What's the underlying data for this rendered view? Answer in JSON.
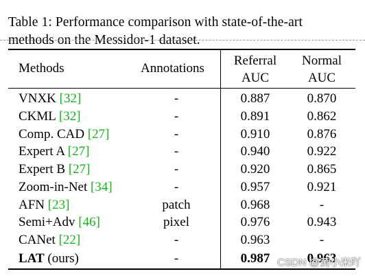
{
  "caption": {
    "line1": "Table 1:  Performance comparison with state-of-the-art",
    "line2": "methods on the Messidor-1 dataset."
  },
  "table": {
    "headers": {
      "methods": "Methods",
      "annotations": "Annotations",
      "referral_l1": "Referral",
      "referral_l2": "AUC",
      "normal_l1": "Normal",
      "normal_l2": "AUC"
    },
    "rows": [
      {
        "name": "VNXK",
        "ref": "[32]",
        "annotations": "-",
        "referral": "0.887",
        "normal": "0.870"
      },
      {
        "name": "CKML",
        "ref": "[32]",
        "annotations": "-",
        "referral": "0.891",
        "normal": "0.862"
      },
      {
        "name": "Comp. CAD",
        "ref": "[27]",
        "annotations": "-",
        "referral": "0.910",
        "normal": "0.876"
      },
      {
        "name": "Expert A",
        "ref": "[27]",
        "annotations": "-",
        "referral": "0.940",
        "normal": "0.922"
      },
      {
        "name": "Expert B",
        "ref": "[27]",
        "annotations": "-",
        "referral": "0.920",
        "normal": "0.865"
      },
      {
        "name": "Zoom-in-Net",
        "ref": "[34]",
        "annotations": "-",
        "referral": "0.957",
        "normal": "0.921"
      },
      {
        "name": "AFN",
        "ref": "[23]",
        "annotations": "patch",
        "referral": "0.968",
        "normal": "-"
      },
      {
        "name": "Semi+Adv",
        "ref": "[46]",
        "annotations": "pixel",
        "referral": "0.976",
        "normal": "0.943"
      },
      {
        "name": "CANet",
        "ref": "[22]",
        "annotations": "-",
        "referral": "0.963",
        "normal": "-"
      }
    ],
    "last_row": {
      "name_bold": "LAT",
      "name_rest": "(ours)",
      "annotations": "-",
      "referral": "0.987",
      "normal": "0.963"
    }
  },
  "colors": {
    "citation": "#16b316"
  },
  "watermark": "CSDN @黄小米吖"
}
